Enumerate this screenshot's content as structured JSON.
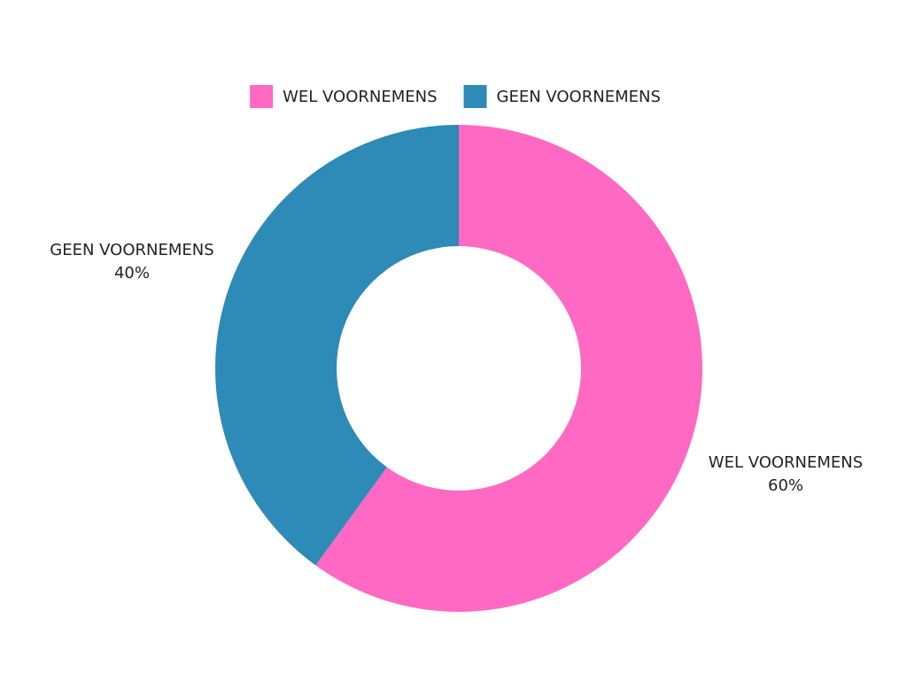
{
  "chart_data": {
    "type": "donut",
    "categories": [
      "WEL VOORNEMENS",
      "GEEN VOORNEMENS"
    ],
    "values": [
      60,
      40
    ],
    "value_labels": [
      "60%",
      "40%"
    ],
    "colors": [
      "#ff69c3",
      "#2e8ab6"
    ],
    "legend": "top"
  }
}
